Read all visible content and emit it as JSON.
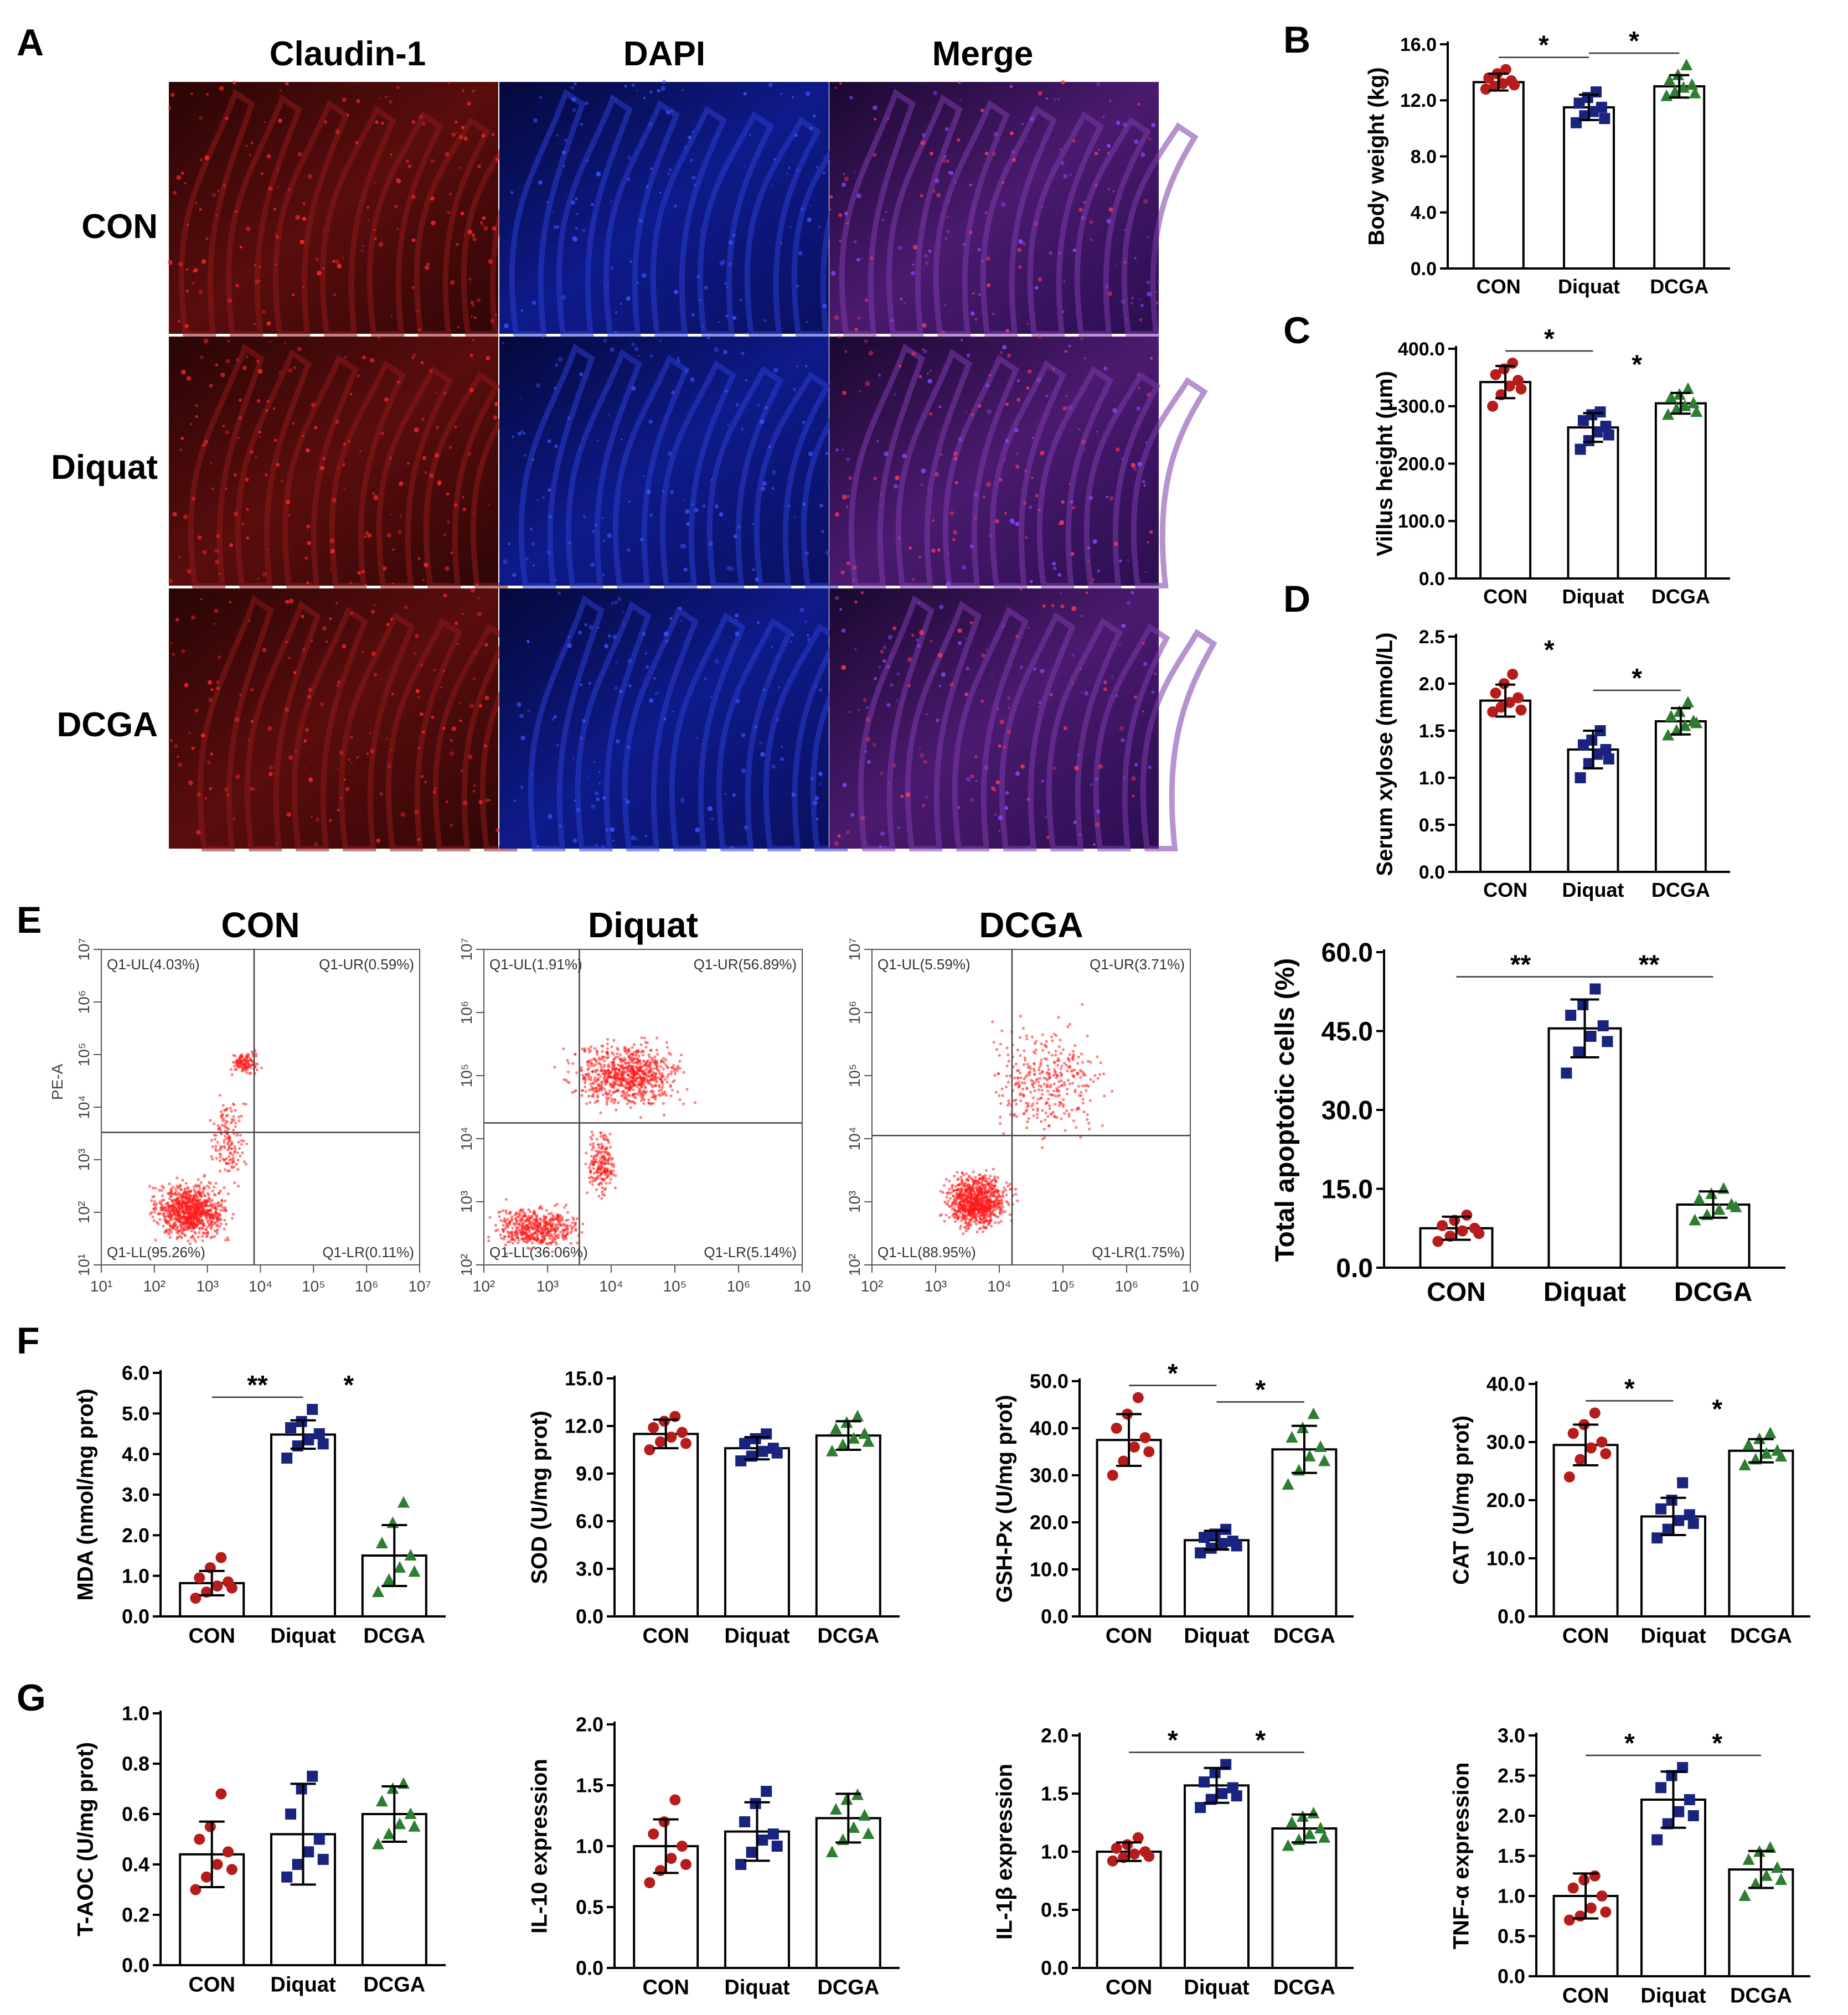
{
  "colors": {
    "con": "#b71c1c",
    "diquat": "#1a237e",
    "dcga": "#2e7d32",
    "axis": "#000000"
  },
  "group_labels": [
    "CON",
    "Diquat",
    "DCGA"
  ],
  "panel_a": {
    "letter": "A",
    "columns": [
      "Claudin-1",
      "DAPI",
      "Merge"
    ],
    "rows": [
      "CON",
      "Diquat",
      "DCGA"
    ]
  },
  "panel_e_flow": {
    "letter": "E",
    "ylabel": "PE-A",
    "plots": [
      {
        "title": "CON",
        "ul": "Q1-UL(4.03%)",
        "ur": "Q1-UR(0.59%)",
        "ll": "Q1-LL(95.26%)",
        "lr": "Q1-LR(0.11%)",
        "xticks": [
          "10¹",
          "10²",
          "10³",
          "10⁴",
          "10⁵",
          "10⁶",
          "10⁷"
        ],
        "yticks": [
          "10¹",
          "10²",
          "10³",
          "10⁴",
          "10⁵",
          "10⁶",
          "10⁷"
        ]
      },
      {
        "title": "Diquat",
        "ul": "Q1-UL(1.91%)",
        "ur": "Q1-UR(56.89%)",
        "ll": "Q1-LL(36.06%)",
        "lr": "Q1-LR(5.14%)",
        "xticks": [
          "10²",
          "10³",
          "10⁴",
          "10⁵",
          "10⁶",
          "10"
        ],
        "yticks": [
          "10²",
          "10³",
          "10⁴",
          "10⁵",
          "10⁶",
          "10⁷"
        ]
      },
      {
        "title": "DCGA",
        "ul": "Q1-UL(5.59%)",
        "ur": "Q1-UR(3.71%)",
        "ll": "Q1-LL(88.95%)",
        "lr": "Q1-LR(1.75%)",
        "xticks": [
          "10²",
          "10³",
          "10⁴",
          "10⁵",
          "10⁶",
          "10"
        ],
        "yticks": [
          "10²",
          "10³",
          "10⁴",
          "10⁵",
          "10⁶",
          "10⁷"
        ]
      }
    ]
  },
  "chart_data": [
    {
      "id": "B",
      "letter": "B",
      "type": "bar",
      "categories": [
        "CON",
        "Diquat",
        "DCGA"
      ],
      "values": [
        13.3,
        11.5,
        13.0
      ],
      "errors": [
        0.6,
        0.9,
        0.8
      ],
      "ylabel": "Body weight (kg)",
      "ylim": [
        0,
        16
      ],
      "yticks": [
        "0.0",
        "4.0",
        "8.0",
        "12.0",
        "16.0"
      ],
      "points": [
        [
          12.8,
          13.0,
          13.2,
          13.4,
          13.6,
          13.9,
          14.2,
          13.1
        ],
        [
          10.4,
          10.9,
          11.2,
          11.5,
          11.8,
          12.2,
          12.6,
          10.7
        ],
        [
          12.3,
          12.6,
          12.9,
          13.1,
          13.4,
          13.8,
          14.5,
          12.5
        ]
      ],
      "sig": [
        {
          "from": 0,
          "to": 1,
          "label": "*",
          "line": true
        },
        {
          "from": 1,
          "to": 2,
          "label": "*",
          "line": true
        }
      ]
    },
    {
      "id": "C",
      "letter": "C",
      "type": "bar",
      "categories": [
        "CON",
        "Diquat",
        "DCGA"
      ],
      "values": [
        342,
        263,
        305
      ],
      "errors": [
        28,
        25,
        18
      ],
      "ylabel": "Villus height (μm)",
      "ylim": [
        0,
        400
      ],
      "yticks": [
        "0.0",
        "100.0",
        "200.0",
        "300.0",
        "400.0"
      ],
      "points": [
        [
          300,
          320,
          335,
          345,
          355,
          365,
          375,
          330
        ],
        [
          225,
          240,
          255,
          265,
          275,
          285,
          290,
          250
        ],
        [
          285,
          295,
          300,
          305,
          315,
          320,
          330,
          290
        ]
      ],
      "sig": [
        {
          "from": 0,
          "to": 1,
          "label": "*",
          "line": true
        },
        {
          "from": 1,
          "to": 2,
          "label": "*",
          "line": false
        }
      ]
    },
    {
      "id": "D",
      "letter": "D",
      "type": "bar",
      "categories": [
        "CON",
        "Diquat",
        "DCGA"
      ],
      "values": [
        1.82,
        1.3,
        1.6
      ],
      "errors": [
        0.17,
        0.2,
        0.14
      ],
      "ylabel": "Serum xylose (mmol/L)",
      "ylim": [
        0,
        2.5
      ],
      "yticks": [
        "0.0",
        "0.5",
        "1.0",
        "1.5",
        "2.0",
        "2.5"
      ],
      "points": [
        [
          1.7,
          1.75,
          1.8,
          1.85,
          1.9,
          2.0,
          2.1,
          1.72
        ],
        [
          1.0,
          1.15,
          1.25,
          1.3,
          1.35,
          1.4,
          1.5,
          1.2
        ],
        [
          1.45,
          1.5,
          1.55,
          1.6,
          1.65,
          1.7,
          1.8,
          1.58
        ]
      ],
      "sig": [
        {
          "from": 0,
          "to": 1,
          "label": "*",
          "line": false
        },
        {
          "from": 1,
          "to": 2,
          "label": "*",
          "line": true
        }
      ]
    },
    {
      "id": "E",
      "letter": "",
      "type": "bar",
      "categories": [
        "CON",
        "Diquat",
        "DCGA"
      ],
      "values": [
        7.5,
        45.5,
        12.0
      ],
      "errors": [
        2.2,
        5.5,
        2.5
      ],
      "ylabel": "Total apoptotic cells (%)",
      "ylim": [
        0,
        60
      ],
      "yticks": [
        "0.0",
        "15.0",
        "30.0",
        "45.0",
        "60.0"
      ],
      "points": [
        [
          5.0,
          6.0,
          7.0,
          7.5,
          8.0,
          9.0,
          10.0,
          6.5
        ],
        [
          37.0,
          41.0,
          44.0,
          46.0,
          48.0,
          50.0,
          53.0,
          43.0
        ],
        [
          9.0,
          10.0,
          11.0,
          12.0,
          13.0,
          14.0,
          15.0,
          11.5
        ]
      ],
      "sig": [
        {
          "from": 0,
          "to": 1,
          "label": "**",
          "line": true
        },
        {
          "from": 1,
          "to": 2,
          "label": "**",
          "line": true
        }
      ]
    },
    {
      "id": "F1",
      "letter": "F",
      "type": "bar",
      "categories": [
        "CON",
        "Diquat",
        "DCGA"
      ],
      "values": [
        0.82,
        4.48,
        1.5
      ],
      "errors": [
        0.3,
        0.35,
        0.75
      ],
      "ylabel": "MDA (nmol/mg prot)",
      "ylim": [
        0,
        6
      ],
      "yticks": [
        "0.0",
        "1.0",
        "2.0",
        "3.0",
        "4.0",
        "5.0",
        "6.0"
      ],
      "points": [
        [
          0.45,
          0.6,
          0.75,
          0.85,
          0.95,
          1.2,
          1.45,
          0.7
        ],
        [
          3.9,
          4.2,
          4.35,
          4.5,
          4.65,
          4.8,
          5.1,
          4.25
        ],
        [
          0.6,
          0.9,
          1.2,
          1.5,
          1.8,
          2.3,
          2.8,
          1.1
        ]
      ],
      "sig": [
        {
          "from": 0,
          "to": 1,
          "label": "**",
          "line": true
        },
        {
          "from": 1,
          "to": 2,
          "label": "*",
          "line": false
        }
      ]
    },
    {
      "id": "F2",
      "letter": "",
      "type": "bar",
      "categories": [
        "CON",
        "Diquat",
        "DCGA"
      ],
      "values": [
        11.5,
        10.6,
        11.4
      ],
      "errors": [
        0.9,
        0.7,
        0.9
      ],
      "ylabel": "SOD (U/mg prot)",
      "ylim": [
        0,
        15
      ],
      "yticks": [
        "0.0",
        "3.0",
        "6.0",
        "9.0",
        "12.0",
        "15.0"
      ],
      "points": [
        [
          10.5,
          11.0,
          11.3,
          11.6,
          11.9,
          12.3,
          12.6,
          10.9
        ],
        [
          9.8,
          10.1,
          10.4,
          10.6,
          10.9,
          11.2,
          11.5,
          10.3
        ],
        [
          10.4,
          10.8,
          11.2,
          11.5,
          11.8,
          12.2,
          12.6,
          11.0
        ]
      ],
      "sig": []
    },
    {
      "id": "F3",
      "letter": "",
      "type": "bar",
      "categories": [
        "CON",
        "Diquat",
        "DCGA"
      ],
      "values": [
        37.5,
        16.2,
        35.5
      ],
      "errors": [
        5.5,
        2.0,
        5.0
      ],
      "ylabel": "GSH-Px (U/mg prot)",
      "ylim": [
        0,
        50
      ],
      "yticks": [
        "0.0",
        "10.0",
        "20.0",
        "30.0",
        "40.0",
        "50.0"
      ],
      "points": [
        [
          30.0,
          33.0,
          36.0,
          38.0,
          40.0,
          43.0,
          46.5,
          35.0
        ],
        [
          13.5,
          14.5,
          15.5,
          16.0,
          16.8,
          17.5,
          18.5,
          15.0
        ],
        [
          28.0,
          31.0,
          34.0,
          36.0,
          38.0,
          40.0,
          43.0,
          33.0
        ]
      ],
      "sig": [
        {
          "from": 0,
          "to": 1,
          "label": "*",
          "line": true
        },
        {
          "from": 1,
          "to": 2,
          "label": "*",
          "line": true
        }
      ]
    },
    {
      "id": "F4",
      "letter": "",
      "type": "bar",
      "categories": [
        "CON",
        "Diquat",
        "DCGA"
      ],
      "values": [
        29.5,
        17.2,
        28.5
      ],
      "errors": [
        3.5,
        3.2,
        2.0
      ],
      "ylabel": "CAT (U/mg prot)",
      "ylim": [
        0,
        40
      ],
      "yticks": [
        "0.0",
        "10.0",
        "20.0",
        "30.0",
        "40.0"
      ],
      "points": [
        [
          24.0,
          27.0,
          29.0,
          30.0,
          31.5,
          33.0,
          35.0,
          28.0
        ],
        [
          13.5,
          15.0,
          16.5,
          17.5,
          18.5,
          20.0,
          23.0,
          16.0
        ],
        [
          26.0,
          27.0,
          28.0,
          28.5,
          29.5,
          30.5,
          31.5,
          27.5
        ]
      ],
      "sig": [
        {
          "from": 0,
          "to": 1,
          "label": "*",
          "line": true
        },
        {
          "from": 1,
          "to": 2,
          "label": "*",
          "line": false
        }
      ]
    },
    {
      "id": "G1",
      "letter": "G",
      "type": "bar",
      "categories": [
        "CON",
        "Diquat",
        "DCGA"
      ],
      "values": [
        0.44,
        0.52,
        0.6
      ],
      "errors": [
        0.13,
        0.2,
        0.11
      ],
      "ylabel": "T-AOC (U/mg prot)",
      "ylim": [
        0,
        1.0
      ],
      "yticks": [
        "0.0",
        "0.2",
        "0.4",
        "0.6",
        "0.8",
        "1.0"
      ],
      "points": [
        [
          0.3,
          0.35,
          0.4,
          0.45,
          0.5,
          0.55,
          0.68,
          0.38
        ],
        [
          0.35,
          0.4,
          0.45,
          0.5,
          0.6,
          0.7,
          0.75,
          0.42
        ],
        [
          0.48,
          0.52,
          0.56,
          0.6,
          0.65,
          0.7,
          0.72,
          0.55
        ]
      ],
      "sig": []
    },
    {
      "id": "G2",
      "letter": "",
      "type": "bar",
      "categories": [
        "CON",
        "Diquat",
        "DCGA"
      ],
      "values": [
        1.0,
        1.12,
        1.23
      ],
      "errors": [
        0.22,
        0.24,
        0.2
      ],
      "ylabel": "IL-10 expression",
      "ylim": [
        0,
        2.0
      ],
      "yticks": [
        "0.0",
        "0.5",
        "1.0",
        "1.5",
        "2.0"
      ],
      "points": [
        [
          0.7,
          0.8,
          0.9,
          1.0,
          1.1,
          1.2,
          1.38,
          0.85
        ],
        [
          0.85,
          0.95,
          1.05,
          1.1,
          1.2,
          1.35,
          1.45,
          1.0
        ],
        [
          0.95,
          1.05,
          1.15,
          1.25,
          1.3,
          1.38,
          1.42,
          1.1
        ]
      ],
      "sig": []
    },
    {
      "id": "G3",
      "letter": "",
      "type": "bar",
      "categories": [
        "CON",
        "Diquat",
        "DCGA"
      ],
      "values": [
        1.0,
        1.57,
        1.2
      ],
      "errors": [
        0.08,
        0.15,
        0.12
      ],
      "ylabel": "IL-1β expression",
      "ylim": [
        0,
        2.0
      ],
      "yticks": [
        "0.0",
        "0.5",
        "1.0",
        "1.5",
        "2.0"
      ],
      "points": [
        [
          0.92,
          0.95,
          0.98,
          1.0,
          1.03,
          1.06,
          1.12,
          0.96
        ],
        [
          1.38,
          1.45,
          1.5,
          1.55,
          1.6,
          1.68,
          1.75,
          1.48
        ],
        [
          1.05,
          1.1,
          1.15,
          1.2,
          1.25,
          1.3,
          1.33,
          1.12
        ]
      ],
      "sig": [
        {
          "from": 0,
          "to": 1,
          "label": "*",
          "line": true
        },
        {
          "from": 1,
          "to": 2,
          "label": "*",
          "line": true
        }
      ]
    },
    {
      "id": "G4",
      "letter": "",
      "type": "bar",
      "categories": [
        "CON",
        "Diquat",
        "DCGA"
      ],
      "values": [
        1.0,
        2.2,
        1.33
      ],
      "errors": [
        0.28,
        0.35,
        0.23
      ],
      "ylabel": "TNF-α expression",
      "ylim": [
        0,
        3.0
      ],
      "yticks": [
        "0.0",
        "0.5",
        "1.0",
        "1.5",
        "2.0",
        "2.5",
        "3.0"
      ],
      "points": [
        [
          0.7,
          0.75,
          0.85,
          1.0,
          1.1,
          1.2,
          1.25,
          0.8
        ],
        [
          1.7,
          1.9,
          2.05,
          2.2,
          2.35,
          2.5,
          2.6,
          2.0
        ],
        [
          1.0,
          1.15,
          1.25,
          1.35,
          1.45,
          1.55,
          1.6,
          1.2
        ]
      ],
      "sig": [
        {
          "from": 0,
          "to": 1,
          "label": "*",
          "line": true
        },
        {
          "from": 1,
          "to": 2,
          "label": "*",
          "line": true
        }
      ]
    }
  ]
}
